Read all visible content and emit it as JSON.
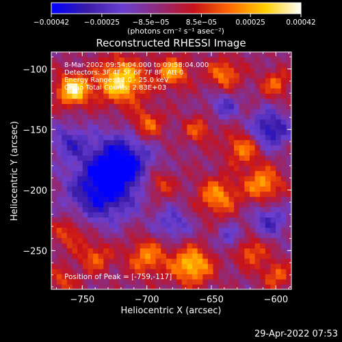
{
  "chart_data": {
    "type": "heatmap",
    "title": "Reconstructed RHESSI Image",
    "xlabel": "Heliocentric X (arcsec)",
    "ylabel": "Heliocentric Y (arcsec)",
    "xlim": [
      -774,
      -588
    ],
    "ylim": [
      -282,
      -86
    ],
    "x_ticks": [
      -750,
      -700,
      -650,
      -600
    ],
    "y_ticks": [
      -250,
      -200,
      -150,
      -100
    ],
    "x_tick_labels": [
      "−750",
      "−700",
      "−650",
      "−600"
    ],
    "y_tick_labels": [
      "−250",
      "−200",
      "−150",
      "−100"
    ],
    "colorbar": {
      "range": [
        -0.00042,
        0.00042
      ],
      "ticks": [
        -0.00042,
        -0.00025,
        -8.5e-05,
        8.5e-05,
        0.00025,
        0.00042
      ],
      "tick_labels": [
        "−0.00042",
        "−0.00025",
        "−8.5e−05",
        "8.5e−05",
        "0.00025",
        "0.00042"
      ],
      "unit_label": "(photons cm⁻² s⁻¹ asec⁻²)",
      "colormap": [
        "#0000ff",
        "#3b1ca8",
        "#6a3fd0",
        "#8f2a7a",
        "#c8121a",
        "#ff6a00",
        "#ffd000",
        "#ffffff"
      ]
    },
    "annotations": [
      "8-Mar-2002 09:54:04.000 to 09:58:04.000",
      "Detectors: 3F 4F 5F 6F 7F 8F, Att 0",
      "Energy Range: 12.0 - 25.0 keV",
      "Clean    Total Counts: 2.83E+03"
    ],
    "peak_label": "Position of Peak = [-759,-117]",
    "peak": {
      "x": -759,
      "y": -117
    },
    "sources": [
      {
        "x": -757,
        "y": -117,
        "amp": 1.0,
        "r": 9
      },
      {
        "x": -720,
        "y": -110,
        "amp": 0.95,
        "r": 13
      },
      {
        "x": -680,
        "y": -102,
        "amp": 0.7,
        "r": 9
      },
      {
        "x": -640,
        "y": -104,
        "amp": 0.6,
        "r": 9
      },
      {
        "x": -600,
        "y": -112,
        "amp": 0.5,
        "r": 8
      },
      {
        "x": -700,
        "y": -146,
        "amp": 0.55,
        "r": 9
      },
      {
        "x": -660,
        "y": -150,
        "amp": 0.45,
        "r": 8
      },
      {
        "x": -625,
        "y": -165,
        "amp": 0.6,
        "r": 10
      },
      {
        "x": -610,
        "y": -195,
        "amp": 0.7,
        "r": 10
      },
      {
        "x": -645,
        "y": -205,
        "amp": 0.65,
        "r": 11
      },
      {
        "x": -690,
        "y": -195,
        "amp": 0.45,
        "r": 8
      },
      {
        "x": -735,
        "y": -200,
        "amp": -0.85,
        "r": 18
      },
      {
        "x": -720,
        "y": -175,
        "amp": -0.8,
        "r": 16
      },
      {
        "x": -760,
        "y": -160,
        "amp": -0.5,
        "r": 10
      },
      {
        "x": -605,
        "y": -150,
        "amp": -0.75,
        "r": 11
      },
      {
        "x": -640,
        "y": -130,
        "amp": -0.45,
        "r": 8
      },
      {
        "x": -680,
        "y": -228,
        "amp": -0.45,
        "r": 10
      },
      {
        "x": -760,
        "y": -235,
        "amp": 0.45,
        "r": 9
      },
      {
        "x": -740,
        "y": -255,
        "amp": 0.5,
        "r": 9
      },
      {
        "x": -700,
        "y": -255,
        "amp": 0.6,
        "r": 11
      },
      {
        "x": -665,
        "y": -262,
        "amp": 0.85,
        "r": 11
      },
      {
        "x": -620,
        "y": -250,
        "amp": 0.55,
        "r": 9
      },
      {
        "x": -600,
        "y": -270,
        "amp": 0.5,
        "r": 8
      },
      {
        "x": -765,
        "y": -275,
        "amp": 0.4,
        "r": 8
      },
      {
        "x": -605,
        "y": -225,
        "amp": -0.5,
        "r": 10
      },
      {
        "x": -635,
        "y": -240,
        "amp": -0.4,
        "r": 8
      }
    ]
  },
  "footer": {
    "date": "29-Apr-2022 07:53"
  }
}
